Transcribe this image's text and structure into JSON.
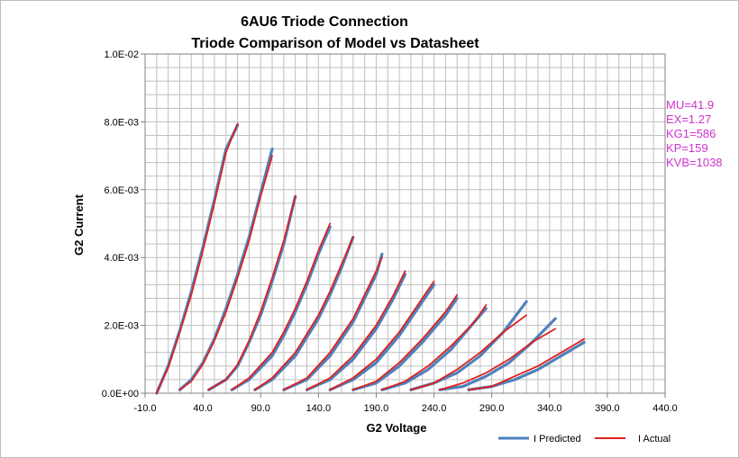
{
  "chart_data": {
    "type": "line",
    "title": "6AU6 Triode Connection",
    "subtitle": "Triode Comparison of Model vs Datasheet",
    "xlabel": "G2 Voltage",
    "ylabel": "G2 Current",
    "xlim": [
      -10,
      440
    ],
    "ylim": [
      0,
      0.01
    ],
    "x_ticks": [
      "-10.0",
      "40.0",
      "90.0",
      "140.0",
      "190.0",
      "240.0",
      "290.0",
      "340.0",
      "390.0",
      "440.0"
    ],
    "y_ticks": [
      "0.0E+00",
      "2.0E-03",
      "4.0E-03",
      "6.0E-03",
      "8.0E-03",
      "1.0E-02"
    ],
    "grid": true,
    "legend_position": "bottom-right",
    "colors": {
      "predicted": "#4f81bd",
      "actual": "#e0201c",
      "params": "#cc33cc"
    },
    "params": [
      "MU=41.9",
      "EX=1.27",
      "KG1=586",
      "KP=159",
      "KVB=1038"
    ],
    "series": [
      {
        "name": "I Predicted",
        "curves": [
          [
            [
              0,
              0
            ],
            [
              10,
              0.0008
            ],
            [
              20,
              0.00185
            ],
            [
              30,
              0.003
            ],
            [
              40,
              0.0043
            ],
            [
              50,
              0.0057
            ],
            [
              60,
              0.0072
            ],
            [
              70,
              0.0079
            ]
          ],
          [
            [
              20,
              0.0001
            ],
            [
              30,
              0.0004
            ],
            [
              40,
              0.0009
            ],
            [
              50,
              0.0016
            ],
            [
              60,
              0.0025
            ],
            [
              70,
              0.0035
            ],
            [
              80,
              0.0046
            ],
            [
              90,
              0.0059
            ],
            [
              100,
              0.0072
            ]
          ],
          [
            [
              45,
              0.0001
            ],
            [
              60,
              0.0004
            ],
            [
              70,
              0.0008
            ],
            [
              80,
              0.0015
            ],
            [
              90,
              0.0023
            ],
            [
              100,
              0.0033
            ],
            [
              110,
              0.0044
            ],
            [
              120,
              0.0058
            ]
          ],
          [
            [
              65,
              0.0001
            ],
            [
              80,
              0.0004
            ],
            [
              100,
              0.0011
            ],
            [
              110,
              0.0017
            ],
            [
              120,
              0.0024
            ],
            [
              130,
              0.0032
            ],
            [
              140,
              0.0041
            ],
            [
              150,
              0.0049
            ]
          ],
          [
            [
              85,
              0.0001
            ],
            [
              100,
              0.0004
            ],
            [
              120,
              0.0011
            ],
            [
              140,
              0.0022
            ],
            [
              150,
              0.0029
            ],
            [
              160,
              0.0037
            ],
            [
              170,
              0.0046
            ]
          ],
          [
            [
              110,
              0.0001
            ],
            [
              130,
              0.0004
            ],
            [
              150,
              0.0011
            ],
            [
              170,
              0.0021
            ],
            [
              180,
              0.0028
            ],
            [
              190,
              0.0035
            ],
            [
              195,
              0.0041
            ]
          ],
          [
            [
              130,
              0.0001
            ],
            [
              150,
              0.0004
            ],
            [
              170,
              0.001
            ],
            [
              190,
              0.0019
            ],
            [
              205,
              0.0028
            ],
            [
              215,
              0.0035
            ]
          ],
          [
            [
              150,
              0.0001
            ],
            [
              170,
              0.0004
            ],
            [
              190,
              0.0009
            ],
            [
              210,
              0.0017
            ],
            [
              230,
              0.0027
            ],
            [
              240,
              0.0032
            ]
          ],
          [
            [
              170,
              0.0001
            ],
            [
              190,
              0.0003
            ],
            [
              210,
              0.0008
            ],
            [
              230,
              0.0015
            ],
            [
              250,
              0.0023
            ],
            [
              260,
              0.0028
            ]
          ],
          [
            [
              195,
              0.0001
            ],
            [
              215,
              0.0003
            ],
            [
              235,
              0.0007
            ],
            [
              255,
              0.0013
            ],
            [
              275,
              0.0021
            ],
            [
              285,
              0.0025
            ]
          ],
          [
            [
              220,
              0.0001
            ],
            [
              240,
              0.0003
            ],
            [
              260,
              0.0006
            ],
            [
              280,
              0.0011
            ],
            [
              300,
              0.0018
            ],
            [
              320,
              0.0027
            ]
          ],
          [
            [
              245,
              0.0001
            ],
            [
              265,
              0.0002
            ],
            [
              285,
              0.0005
            ],
            [
              305,
              0.0009
            ],
            [
              325,
              0.0015
            ],
            [
              345,
              0.0022
            ]
          ],
          [
            [
              270,
              0.0001
            ],
            [
              290,
              0.0002
            ],
            [
              310,
              0.0004
            ],
            [
              330,
              0.0007
            ],
            [
              350,
              0.0011
            ],
            [
              370,
              0.0015
            ]
          ]
        ]
      },
      {
        "name": "I Actual",
        "curves": [
          [
            [
              0,
              0
            ],
            [
              10,
              0.00075
            ],
            [
              20,
              0.0018
            ],
            [
              30,
              0.0029
            ],
            [
              40,
              0.0042
            ],
            [
              50,
              0.0056
            ],
            [
              60,
              0.0071
            ],
            [
              70,
              0.00795
            ]
          ],
          [
            [
              20,
              0.0001
            ],
            [
              30,
              0.00035
            ],
            [
              40,
              0.00085
            ],
            [
              50,
              0.00155
            ],
            [
              60,
              0.0024
            ],
            [
              70,
              0.0034
            ],
            [
              80,
              0.0045
            ],
            [
              90,
              0.0058
            ],
            [
              100,
              0.007
            ]
          ],
          [
            [
              45,
              0.0001
            ],
            [
              60,
              0.0004
            ],
            [
              70,
              0.00085
            ],
            [
              80,
              0.00155
            ],
            [
              90,
              0.0024
            ],
            [
              100,
              0.0034
            ],
            [
              110,
              0.0045
            ],
            [
              120,
              0.0058
            ]
          ],
          [
            [
              65,
              0.0001
            ],
            [
              80,
              0.00045
            ],
            [
              100,
              0.0012
            ],
            [
              110,
              0.0018
            ],
            [
              120,
              0.0025
            ],
            [
              130,
              0.0033
            ],
            [
              140,
              0.0042
            ],
            [
              150,
              0.005
            ]
          ],
          [
            [
              85,
              0.0001
            ],
            [
              100,
              0.00045
            ],
            [
              120,
              0.0012
            ],
            [
              140,
              0.0023
            ],
            [
              150,
              0.003
            ],
            [
              160,
              0.0038
            ],
            [
              170,
              0.0046
            ]
          ],
          [
            [
              110,
              0.0001
            ],
            [
              130,
              0.00045
            ],
            [
              150,
              0.0012
            ],
            [
              170,
              0.0022
            ],
            [
              180,
              0.0029
            ],
            [
              190,
              0.0036
            ],
            [
              195,
              0.004
            ]
          ],
          [
            [
              130,
              0.0001
            ],
            [
              150,
              0.00045
            ],
            [
              170,
              0.0011
            ],
            [
              190,
              0.002
            ],
            [
              205,
              0.0029
            ],
            [
              215,
              0.0036
            ]
          ],
          [
            [
              150,
              0.0001
            ],
            [
              170,
              0.00045
            ],
            [
              190,
              0.001
            ],
            [
              210,
              0.0018
            ],
            [
              230,
              0.0028
            ],
            [
              240,
              0.0033
            ]
          ],
          [
            [
              170,
              0.0001
            ],
            [
              190,
              0.00035
            ],
            [
              210,
              0.0009
            ],
            [
              230,
              0.0016
            ],
            [
              250,
              0.0024
            ],
            [
              260,
              0.0029
            ]
          ],
          [
            [
              195,
              0.0001
            ],
            [
              215,
              0.00035
            ],
            [
              235,
              0.0008
            ],
            [
              255,
              0.0014
            ],
            [
              275,
              0.0021
            ],
            [
              285,
              0.0026
            ]
          ],
          [
            [
              220,
              0.0001
            ],
            [
              240,
              0.0003
            ],
            [
              260,
              0.0007
            ],
            [
              280,
              0.0012
            ],
            [
              300,
              0.0018
            ],
            [
              320,
              0.0023
            ]
          ],
          [
            [
              245,
              0.0001
            ],
            [
              265,
              0.0003
            ],
            [
              285,
              0.0006
            ],
            [
              305,
              0.001
            ],
            [
              325,
              0.0015
            ],
            [
              345,
              0.0019
            ]
          ],
          [
            [
              270,
              0.0001
            ],
            [
              290,
              0.0002
            ],
            [
              310,
              0.0005
            ],
            [
              330,
              0.0008
            ],
            [
              350,
              0.0012
            ],
            [
              370,
              0.0016
            ]
          ]
        ]
      }
    ]
  }
}
